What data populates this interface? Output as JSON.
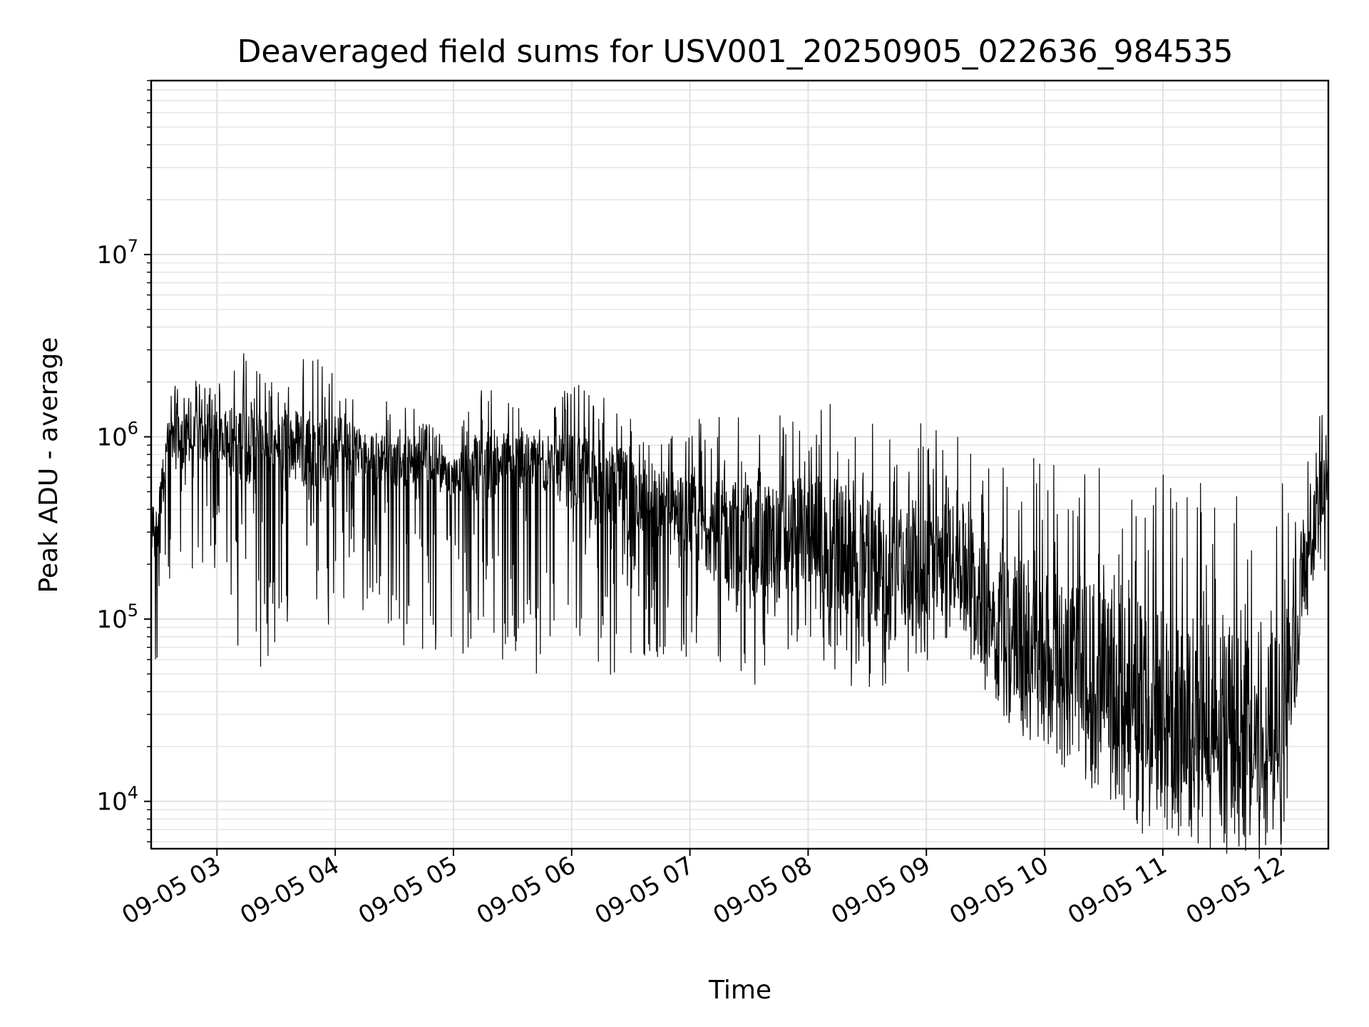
{
  "chart_data": {
    "type": "line",
    "title": "Deaveraged field sums for USV001_20250905_022636_984535",
    "xlabel": "Time",
    "ylabel": "Peak ADU - average",
    "yscale": "log",
    "ylim": [
      5500,
      90000000
    ],
    "xlim": [
      "2025-09-05 02:26:36",
      "2025-09-05 12:24:00"
    ],
    "x_tick_labels": [
      "09-05 03",
      "09-05 04",
      "09-05 05",
      "09-05 06",
      "09-05 07",
      "09-05 08",
      "09-05 09",
      "09-05 10",
      "09-05 11",
      "09-05 12"
    ],
    "x_tick_times": [
      "2025-09-05 03:00",
      "2025-09-05 04:00",
      "2025-09-05 05:00",
      "2025-09-05 06:00",
      "2025-09-05 07:00",
      "2025-09-05 08:00",
      "2025-09-05 09:00",
      "2025-09-05 10:00",
      "2025-09-05 11:00",
      "2025-09-05 12:00"
    ],
    "y_tick_labels": [
      {
        "value": 10000,
        "base": "10",
        "exp": "4"
      },
      {
        "value": 100000,
        "base": "10",
        "exp": "5"
      },
      {
        "value": 1000000,
        "base": "10",
        "exp": "6"
      },
      {
        "value": 10000000,
        "base": "10",
        "exp": "7"
      }
    ],
    "grid": true,
    "series_color": "#000000",
    "series": [
      {
        "x": [
          "2025-09-05 02:27",
          "2025-09-05 02:35",
          "2025-09-05 02:45",
          "2025-09-05 03:00",
          "2025-09-05 03:15",
          "2025-09-05 03:30",
          "2025-09-05 03:45",
          "2025-09-05 04:00",
          "2025-09-05 04:15",
          "2025-09-05 04:30",
          "2025-09-05 04:45",
          "2025-09-05 05:00",
          "2025-09-05 05:15",
          "2025-09-05 05:30",
          "2025-09-05 05:45",
          "2025-09-05 06:00",
          "2025-09-05 06:15",
          "2025-09-05 06:30",
          "2025-09-05 06:45",
          "2025-09-05 07:00",
          "2025-09-05 07:15",
          "2025-09-05 07:30",
          "2025-09-05 07:45",
          "2025-09-05 08:00",
          "2025-09-05 08:15",
          "2025-09-05 08:30",
          "2025-09-05 08:45",
          "2025-09-05 09:00",
          "2025-09-05 09:15",
          "2025-09-05 09:30",
          "2025-09-05 09:45",
          "2025-09-05 10:00",
          "2025-09-05 10:15",
          "2025-09-05 10:30",
          "2025-09-05 10:45",
          "2025-09-05 11:00",
          "2025-09-05 11:15",
          "2025-09-05 11:30",
          "2025-09-05 11:45",
          "2025-09-05 12:00",
          "2025-09-05 12:10",
          "2025-09-05 12:20",
          "2025-09-05 12:24"
        ],
        "y": [
          200000,
          900000,
          950000,
          1000000,
          950000,
          900000,
          900000,
          850000,
          800000,
          750000,
          700000,
          600000,
          700000,
          750000,
          700000,
          650000,
          550000,
          500000,
          420000,
          350000,
          300000,
          280000,
          260000,
          300000,
          250000,
          200000,
          180000,
          200000,
          220000,
          120000,
          70000,
          60000,
          50000,
          40000,
          30000,
          25000,
          25000,
          22000,
          20000,
          20000,
          150000,
          450000,
          700000
        ],
        "y_high": [
          400000,
          1800000,
          2100000,
          1900000,
          3300000,
          1900000,
          3200000,
          2300000,
          1600000,
          1600000,
          1400000,
          1000000,
          2000000,
          1700000,
          1500000,
          1900000,
          2000000,
          1500000,
          1300000,
          1300000,
          1300000,
          1500000,
          1400000,
          1300000,
          1700000,
          1300000,
          1300000,
          1300000,
          1000000,
          1000000,
          900000,
          850000,
          850000,
          800000,
          750000,
          700000,
          600000,
          550000,
          500000,
          600000,
          800000,
          1500000,
          900000
        ],
        "y_low": [
          40000,
          70000,
          180000,
          120000,
          50000,
          60000,
          70000,
          90000,
          100000,
          80000,
          50000,
          60000,
          70000,
          45000,
          45000,
          80000,
          50000,
          45000,
          60000,
          55000,
          50000,
          42000,
          50000,
          80000,
          45000,
          40000,
          40000,
          55000,
          80000,
          40000,
          30000,
          30000,
          25000,
          18000,
          15000,
          10000,
          11000,
          10000,
          9000,
          12000,
          50000,
          200000,
          150000
        ]
      }
    ]
  }
}
